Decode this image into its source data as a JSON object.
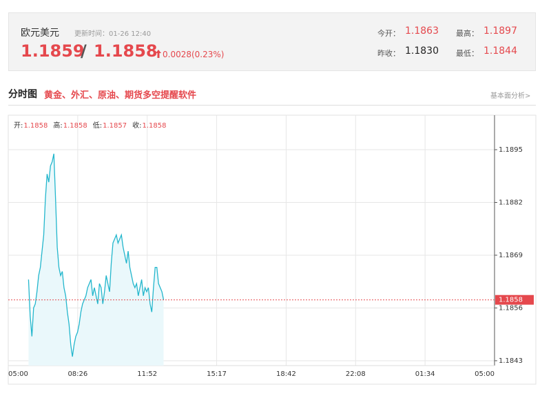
{
  "header": {
    "title": "欧元美元",
    "update_time": "更新时间：01-26 12:40",
    "bid": "1.1859",
    "separator": "/",
    "ask": "1.1858",
    "change": "0.0028(0.23%)",
    "stats": [
      {
        "label": "今开：",
        "value": "1.1863"
      },
      {
        "label": "最高：",
        "value": "1.1897"
      },
      {
        "label": "昨收：",
        "value": "1.1830"
      },
      {
        "label": "最低：",
        "value": "1.1844"
      }
    ]
  },
  "section": {
    "title": "分时图",
    "promo": "黄金、外汇、原油、期货多空提醒软件",
    "link": "基本面分析>"
  },
  "chart_data": {
    "type": "line",
    "info": [
      {
        "label": "开:",
        "value": "1.1858"
      },
      {
        "label": "高:",
        "value": "1.1858"
      },
      {
        "label": "低:",
        "value": "1.1857"
      },
      {
        "label": "收:",
        "value": "1.1858"
      }
    ],
    "xticks": [
      "05:00",
      "08:26",
      "11:52",
      "15:17",
      "18:42",
      "22:08",
      "01:34",
      "05:00"
    ],
    "ylim": [
      1.18418,
      1.19035
    ],
    "yticks": [
      1.1843,
      1.1856,
      1.1869,
      1.1882,
      1.1895
    ],
    "reference_line": 1.1858,
    "grid": true,
    "series": [
      {
        "color": "#22b6cc",
        "x": [
          "06:00",
          "06:05",
          "06:10",
          "06:15",
          "06:20",
          "06:25",
          "06:30",
          "06:35",
          "06:40",
          "06:45",
          "06:50",
          "06:55",
          "07:00",
          "07:05",
          "07:10",
          "07:15",
          "07:20",
          "07:25",
          "07:30",
          "07:35",
          "07:40",
          "07:45",
          "07:50",
          "07:55",
          "08:00",
          "08:05",
          "08:10",
          "08:15",
          "08:20",
          "08:25",
          "08:30",
          "08:35",
          "08:40",
          "08:45",
          "08:50",
          "08:55",
          "09:00",
          "09:05",
          "09:10",
          "09:15",
          "09:20",
          "09:25",
          "09:30",
          "09:35",
          "09:40",
          "09:45",
          "09:50",
          "09:55",
          "10:00",
          "10:05",
          "10:10",
          "10:15",
          "10:20",
          "10:25",
          "10:30",
          "10:35",
          "10:40",
          "10:45",
          "10:50",
          "10:55",
          "11:00",
          "11:05",
          "11:10",
          "11:15",
          "11:20",
          "11:25",
          "11:30",
          "11:35",
          "11:40",
          "11:45",
          "11:50",
          "11:55",
          "12:00",
          "12:05",
          "12:10",
          "12:15",
          "12:20",
          "12:25",
          "12:30",
          "12:35",
          "12:40"
        ],
        "values": [
          1.1863,
          1.1854,
          1.1849,
          1.1856,
          1.1857,
          1.186,
          1.1864,
          1.1866,
          1.187,
          1.1874,
          1.1883,
          1.1889,
          1.1887,
          1.1891,
          1.1892,
          1.1894,
          1.1883,
          1.1871,
          1.1866,
          1.1864,
          1.1865,
          1.1861,
          1.1859,
          1.1855,
          1.1852,
          1.1847,
          1.1844,
          1.1847,
          1.1849,
          1.185,
          1.1852,
          1.1855,
          1.1857,
          1.1858,
          1.1859,
          1.1861,
          1.1862,
          1.1863,
          1.1859,
          1.1861,
          1.1859,
          1.1857,
          1.1862,
          1.1861,
          1.1857,
          1.186,
          1.1864,
          1.1862,
          1.186,
          1.1867,
          1.1872,
          1.1873,
          1.1874,
          1.1872,
          1.1873,
          1.1874,
          1.1871,
          1.1869,
          1.1867,
          1.187,
          1.1866,
          1.1864,
          1.1862,
          1.1861,
          1.1862,
          1.1859,
          1.1861,
          1.1863,
          1.1859,
          1.1861,
          1.186,
          1.1861,
          1.1857,
          1.1855,
          1.1861,
          1.1866,
          1.1866,
          1.1862,
          1.1861,
          1.186,
          1.1858
        ]
      }
    ]
  }
}
